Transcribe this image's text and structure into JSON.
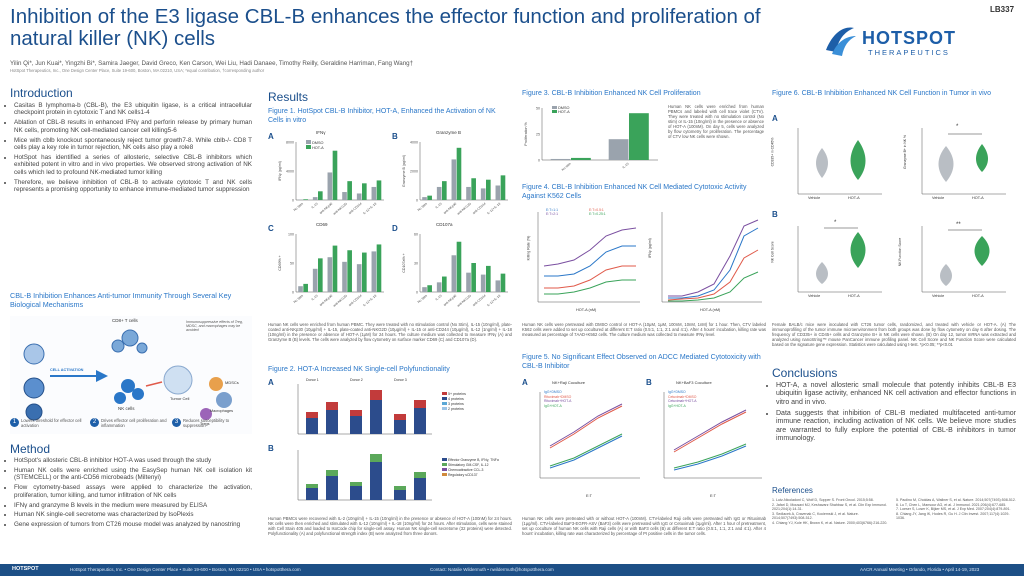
{
  "header": {
    "title": "Inhibition of the E3 ligase CBL-B enhances the effector function and proliferation of natural killer (NK) cells",
    "authors": "Yilin Qi*, Jun Kuai*, Yingzhi Bi*, Samira Jaeger, David Greco, Ken Carson, Wei Liu, Hadi Danaee, Timothy Reilly, Geraldine Harriman, Fang Wang†",
    "affiliation": "HotSpot Therapeutics, Inc., One Design Center Place, Suite 19-600, Boston, MA 02210, USA; *equal contribution, †corresponding author",
    "abstract_number": "LB337",
    "logo_main": "HOTSPOT",
    "logo_sub": "THERAPEUTICS"
  },
  "intro": {
    "heading": "Introduction",
    "bullets": [
      "Casitas B lymphoma-b (CBL-B), the E3 ubiquitin ligase, is a critical intracellular checkpoint protein in cytotoxic T and NK cells1-4",
      "Ablation of CBL-B results in enhanced IFNγ and perforin release by primary human NK cells, promoting NK cell-mediated cancer cell killing5-6",
      "Mice with cblb knockout spontaneously reject tumor growth7-8. While cblb-/- CD8 T cells play a key role in tumor rejection, NK cells also play a role8",
      "HotSpot has identified a series of allosteric, selective CBL-B inhibitors which exhibited potent in vitro and in vivo properties. We observed strong activation of NK cells which led to profound NK-mediated tumor killing",
      "Therefore, we believe inhibition of CBL-B to activate cytotoxic T and NK cells represents a promising opportunity to enhance immune-mediated tumor suppression"
    ],
    "diagram_title": "CBL-B Inhibition Enhances Anti-tumor Immunity Through Several Key Biological Mechanisms",
    "diagram_labels": {
      "cd8": "CD8+ T cells",
      "immuno": "Immunosuppressive effects of Treg, MDSC, and macrophages may be avoided",
      "activation": "CELL ACTIVATION",
      "tumor": "Tumor Cell",
      "nk": "NK cells",
      "mdsc": "MDSCs",
      "macro": "Macrophages",
      "treg": "Tregs"
    },
    "steps": [
      {
        "num": "1",
        "text": "Lowers threshold for effector cell activation"
      },
      {
        "num": "2",
        "text": "Drives effector cell proliferation and inflammation"
      },
      {
        "num": "3",
        "text": "Reduces susceptibility to suppression"
      }
    ]
  },
  "method": {
    "heading": "Method",
    "bullets": [
      "HotSpot's allosteric CBL-B inhibitor HOT-A was used through the study",
      "Human NK cells were enriched using the EasySep human NK cell isolation kit (STEMCELL) or the anti-CD56 microbeads (Miltenyi)",
      "Flow cytometry-based assays were applied to characterize the activation, proliferation, tumor killing, and tumor infiltration of NK cells",
      "IFNγ and granzyme B levels in the medium were measured by ELISA",
      "Human NK single-cell secretome was characterized by IsoPlexis",
      "Gene expression of tumors from CT26 mouse model was analyzed by nanostring"
    ]
  },
  "results": {
    "heading": "Results",
    "fig1_title": "Figure 1. HotSpot CBL-B Inhibitor, HOT-A, Enhanced the Activation of NK Cells in vitro",
    "fig1_panels": {
      "a": "A",
      "b": "B",
      "c": "C",
      "d": "D",
      "a_title": "IFNγ",
      "b_title": "Granzyme B",
      "c_title": "CD69",
      "d_title": "CD107a",
      "a_ylabel": "IFNγ (pg/ml)",
      "b_ylabel": "Granzyme B (pg/ml)",
      "c_ylabel": "CD69% +",
      "d_ylabel": "CD107a% +",
      "legend1": "DMSO",
      "legend2": "HOT-A"
    },
    "fig1_caption": "Human NK cells were enriched from human PBMC. They were treated with no stimulation control (No Stim), IL-15 (10ng/ml), plate-coated anti-NKp30 (10μg/ml) + IL-15, plate-coated anti-NKG2D (10μg/ml) + IL-15 or anti-CD244 (10μg/ml), IL-12 (1ng/ml) + IL-18 (10ng/ml) in the presence or absence of HOT-A (1μM) for 24 hours. The culture medium was collected to measure IFNγ (A) and Granzyme B (B) levels. The cells were analyzed by flow cytometry on surface marker CD69 (C) and CD107a (D).",
    "fig2_title": "Figure 2. HOT-A Increased NK Single-cell Polyfunctionality",
    "fig2_panels": {
      "a": "A",
      "b": "B",
      "a_ylabel": "Polyfunctionality (% of Sample)",
      "b_ylabel": "Polyfunctional Strength Index",
      "donors": [
        "Donor 1",
        "Donor 2",
        "Donor 3"
      ],
      "xcats": [
        "DMSO",
        "HOT-A",
        "DMSO",
        "HOT-A",
        "DMSO",
        "HOT-A"
      ],
      "legend_a": [
        "5+ proteins",
        "4 proteins",
        "3 proteins",
        "2 proteins"
      ],
      "legend_b": [
        "Effector Granzyme B, IFNγ, TNFα",
        "Stimulatory GM-CSF, IL-12",
        "Chemoattractive CCL-3",
        "Regulatory sCD137"
      ]
    },
    "fig2_caption": "Human PBMCs were recovered with IL-2 (10ng/ml) + IL-15 (10ng/ml) in the presence or absence of HOT-A (100nM) for 24 hours. NK cells were then enriched and stimulated with IL-12 (10ng/ml) + IL-18 (10ng/ml) for 24 hours. After stimulation, cells were stained with Cell Stain 405 and loaded to IsoCode chip for single-cell assay. Human NK single-cell secretome (32 proteins) were detected. Polyfunctionality (A) and polyfunctional strength index (B) were analyzed from three donors."
  },
  "fig3": {
    "title": "Figure 3. CBL-B Inhibition Enhanced NK Cell Proliferation",
    "ylabel": "Proliferation %",
    "legend1": "DMSO",
    "legend2": "HOT-A",
    "xlabels": [
      "No stim",
      "IL-15"
    ],
    "caption": "Human NK cells were enriched from human PBMCs and labeled with cell trace violet (CTV). They were treated with no stimulation control (No stim) or IL-15 (10ng/ml) in the presence or absence of HOT-A (100nM). On day 5, cells were analyzed by flow cytometry for proliferation. The percentage of CTV low NK cells were shown."
  },
  "fig4": {
    "title": "Figure 4. CBL-B Inhibition Enhanced NK Cell Mediated Cytotoxic Activity Against K562 Cells",
    "left_ylabel": "Killing Rate (%)",
    "right_ylabel": "IFNγ (pg/ml)",
    "xlabel": "HOT-A (nM)",
    "legend": [
      "E:T=1:1",
      "E:T=0.5:1",
      "E:T=2:1",
      "E:T=0.25:1"
    ],
    "caption": "Human NK cells were pretreated with DMSO control or HOT-A (10μM, 1μM, 100nM, 10nM, 1nM) for 1 hour. Then, CTV labeled K562 cells were added to set up cocultured at different E:T ratio (0.5:1, 1:1, 2:1 and 4:1). After 4 hours' incubation, killing rate was measured as percentage of 7AAD+K562 cells. The culture medium was collected to measure IFNγ level."
  },
  "fig5": {
    "title": "Figure 5. No Significant Effect Observed on ADCC Mediated Cytotoxicity with CBL-B Inhibitor",
    "left_title": "NK+Raji Coculture",
    "right_title": "NK+BaF3 Coculture",
    "ylabel": "Killing Rate (%)",
    "xlabel": "E:T",
    "legend_left": [
      "IgG+DMSO",
      "Rituximab+DMSO",
      "Rituximab+HOT-A",
      "IgG+HOT-A"
    ],
    "legend_right": [
      "IgG+DMSO",
      "Cetuximab+DMSO",
      "Cetuximab+HOT-A",
      "IgG+HOT-A"
    ],
    "caption": "Human NK cells were pretreated with or without HOT-A (100nM). CTV-labeled Raji cells were pretreated with IgG or Rituximab (1μg/ml). CTV-labeled BaF3-EGFR-ASV (BaF3) cells were pretreated with IgG or Cetuximab (1μg/ml). After 1 hour of pretreatment, set up coculture of human NK cells with Raji cells (A) or with BaF3 cells (B) at different E:T ratio (0.5:1, 1:1, 2:1 and 4:1). After 4 hours' incubation, killing rate was characterized by percentage of PI positive cells in the tumor cells."
  },
  "fig6": {
    "title": "Figure 6. CBL-B Inhibition Enhanced NK Cell Function in Tumor in vivo",
    "panel_a": "A",
    "panel_b": "B",
    "a1_ylabel": "CD335+ in CD45%",
    "a2_ylabel": "Granzyme B+ in NK %",
    "b1_ylabel": "NK Cell Score",
    "b2_ylabel": "NK Function Score",
    "xcats": [
      "Vehicle",
      "HOT-A"
    ],
    "sig_a2": "*",
    "sig_b1": "*",
    "sig_b2": "**",
    "caption": "Female BALB/c mice were inoculated with CT26 tumor cells, randomized, and treated with vehicle or HOT-A. (A) The immunoprofiling of the tumor immune microenvironment from both groups was done by flow cytometry on day 6 after dosing. The frequency of CD335+ in CD45+ cells and Granzyme B+ in NK cells were shown. (B) On day 12, tumor mRNA was extracted and analyzed using nanoString™ mouse PanCancer immune profiling panel. NK Cell Score and NK Function Score were calculated based on the signature gene expression. Statistics were calculated using t-test. *p<0.05; **p<0.01"
  },
  "conclusions": {
    "heading": "Conclusions",
    "bullets": [
      "HOT-A, a novel allosteric small molecule that potently inhibits CBL-B E3 ubiquitin ligase activity, enhanced NK cell activation and effector functions in vitro and in vivo.",
      "Data suggests that inhibition of CBL-B mediated multifaceted anti-tumor immune reaction, including activation of NK cells. We believe more studies are warranted to fully explore the potential of CBL-B inhibitors in tumor immunology."
    ]
  },
  "references": {
    "heading": "References",
    "left": [
      "1. Lutz-Nicoladoni C, Wolf D, Sopper S. Front Oncol. 2015;5:58.",
      "2. Jafari D, Mousavi MJ, Keshavarz Shahbaz S, et al. Clin Exp Immunol. 2021;204(1):14-31.",
      "3. Sedlacek A, Cravenak C, Kociemski J, et al. Nature. 2014;507(7493):508-512.",
      "4. Chiang YJ, Kole HK, Brown K, et al. Nature. 2000;403(6766):216-220."
    ],
    "right": [
      "5. Paolino M, Choidas A, Wallner S, et al. Nature. 2014;507(7493):508-512.",
      "6. Lu T, Chen L, Mansour AG, et al. J Immunol. 2021;206(4):677-685.",
      "7. Loeser S, Loser K, Bijker MS, et al. J Exp Med. 2007;204(4):879-891.",
      "8. Chiang JY, Jang IK, Hodes R, Gu H. J Clin Invest. 2007;117(4):1029-1036."
    ]
  },
  "footer": {
    "logo": "HOTSPOT",
    "address": "HotSpot Therapeutics, Inc. • One Design Center Place • Suite 19-600 • Boston, MA 02210 • USA • hotspotthera.com",
    "contact": "Contact: Natalie Wildermuth • nwildermuth@hotspotthera.com",
    "meeting": "AACR Annual Meeting • Orlando, Florida • April 14-19, 2023"
  },
  "chart_data": [
    {
      "type": "bar",
      "title": "IFNγ",
      "ylabel": "IFNγ (pg/ml)",
      "ylim": [
        0,
        8000
      ],
      "categories": [
        "No Stim",
        "IL-15",
        "anti-NKp30",
        "anti-NKG2D",
        "anti-CD244",
        "IL-12+IL-18"
      ],
      "series": [
        {
          "name": "DMSO",
          "values": [
            50,
            400,
            3800,
            1100,
            900,
            1800
          ]
        },
        {
          "name": "HOT-A",
          "values": [
            100,
            1200,
            6800,
            2600,
            2300,
            2700
          ]
        }
      ]
    },
    {
      "type": "bar",
      "title": "Granzyme B",
      "ylabel": "Granzyme B (pg/ml)",
      "ylim": [
        0,
        4000
      ],
      "categories": [
        "No Stim",
        "IL-15",
        "anti-NKp30",
        "anti-NKG2D",
        "anti-CD244",
        "IL-12+IL-18"
      ],
      "series": [
        {
          "name": "DMSO",
          "values": [
            200,
            900,
            2800,
            900,
            800,
            1000
          ]
        },
        {
          "name": "HOT-A",
          "values": [
            300,
            1300,
            3600,
            1500,
            1400,
            1700
          ]
        }
      ]
    },
    {
      "type": "bar",
      "title": "CD69",
      "ylabel": "CD69% +",
      "ylim": [
        0,
        100
      ],
      "categories": [
        "No Stim",
        "IL-15",
        "anti-NKp30",
        "anti-NKG2D",
        "anti-CD244",
        "IL-12+IL-18"
      ],
      "series": [
        {
          "name": "DMSO",
          "values": [
            10,
            40,
            60,
            52,
            48,
            70
          ]
        },
        {
          "name": "HOT-A",
          "values": [
            14,
            58,
            80,
            72,
            68,
            82
          ]
        }
      ]
    },
    {
      "type": "bar",
      "title": "CD107a",
      "ylabel": "CD107a% +",
      "ylim": [
        0,
        60
      ],
      "categories": [
        "No Stim",
        "IL-15",
        "anti-NKp30",
        "anti-NKG2D",
        "anti-CD244",
        "IL-12+IL-18"
      ],
      "series": [
        {
          "name": "DMSO",
          "values": [
            5,
            10,
            38,
            20,
            18,
            12
          ]
        },
        {
          "name": "HOT-A",
          "values": [
            7,
            16,
            52,
            30,
            27,
            19
          ]
        }
      ]
    },
    {
      "type": "bar",
      "title": "Figure 3",
      "ylabel": "Proliferation %",
      "ylim": [
        0,
        50
      ],
      "categories": [
        "No stim",
        "IL-15"
      ],
      "series": [
        {
          "name": "DMSO",
          "values": [
            1,
            20
          ]
        },
        {
          "name": "HOT-A",
          "values": [
            2,
            45
          ]
        }
      ]
    }
  ]
}
